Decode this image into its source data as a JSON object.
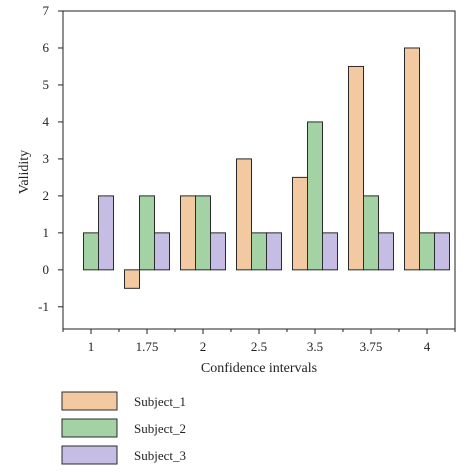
{
  "chart_data": {
    "type": "bar",
    "categories": [
      "1",
      "1.75",
      "2",
      "2.5",
      "3.5",
      "3.75",
      "4"
    ],
    "series": [
      {
        "name": "Subject_1",
        "color": "#f2c9a0",
        "values": [
          0,
          -0.5,
          2,
          3,
          2.5,
          5.5,
          6
        ]
      },
      {
        "name": "Subject_2",
        "color": "#a3d3a5",
        "values": [
          1,
          2,
          2,
          1,
          4,
          2,
          1
        ]
      },
      {
        "name": "Subject_3",
        "color": "#c6bde4",
        "values": [
          2,
          1,
          1,
          1,
          1,
          1,
          1
        ]
      }
    ],
    "xlabel": "Confidence intervals",
    "ylabel": "Validity",
    "ylim": [
      -1.6,
      7
    ],
    "yticks": [
      "-1",
      "0",
      "1",
      "2",
      "3",
      "4",
      "5",
      "6",
      "7"
    ],
    "grid": false,
    "legend": "bottom-left"
  }
}
